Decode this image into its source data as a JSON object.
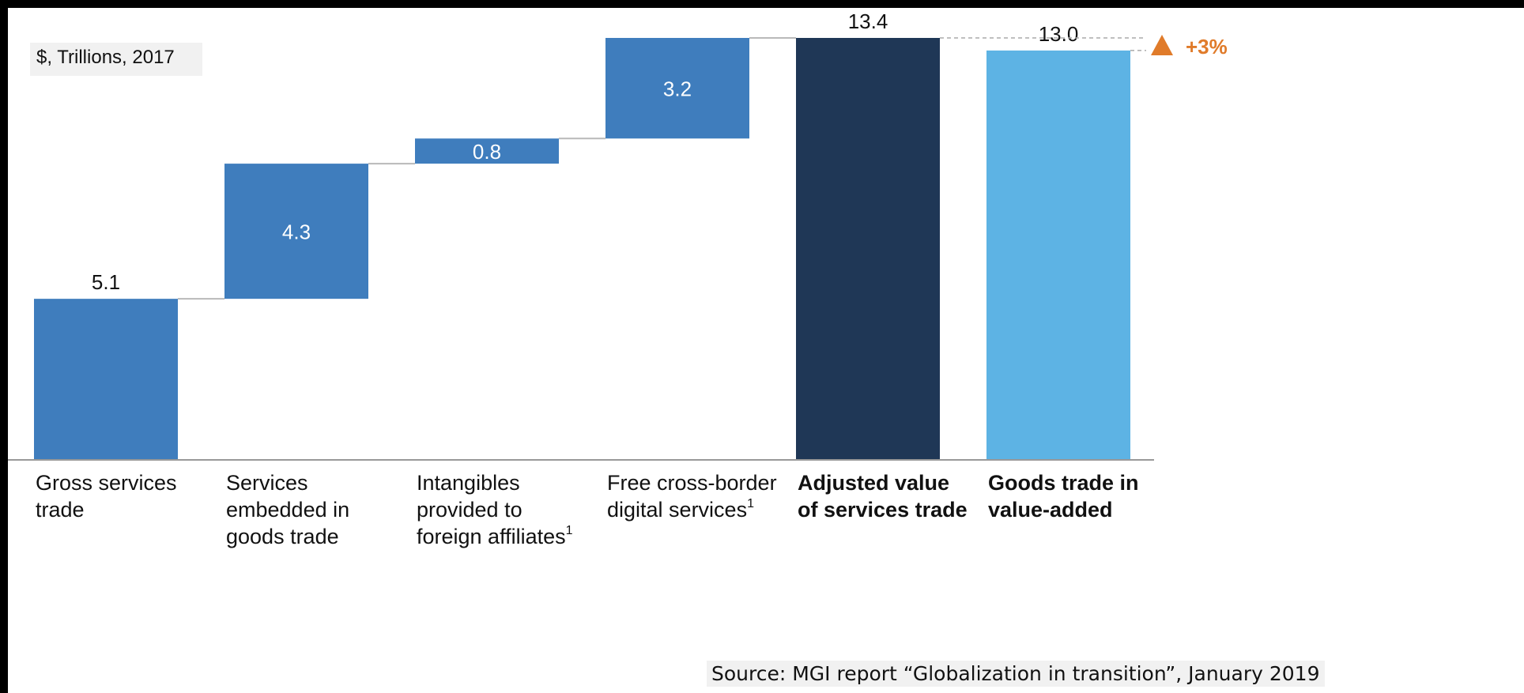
{
  "unit_note": "$, Trillions, 2017",
  "source_note": "Source: MGI report “Globalization in transition”, January 2019",
  "chart_data": {
    "type": "bar",
    "subtype": "waterfall",
    "categories": [
      [
        "Gross services",
        "trade"
      ],
      [
        "Services",
        "embedded in",
        "goods trade"
      ],
      [
        "Intangibles",
        "provided to",
        "foreign affiliates"
      ],
      [
        "Free cross-border",
        "digital services"
      ],
      [
        "Adjusted value",
        "of services trade"
      ],
      [
        "Goods trade in",
        "value-added"
      ]
    ],
    "footnote_marks": [
      "",
      "",
      "1",
      "1",
      "",
      ""
    ],
    "bold_categories": [
      false,
      false,
      false,
      false,
      true,
      true
    ],
    "bar_kinds": [
      "total",
      "increment",
      "increment",
      "increment",
      "total",
      "total"
    ],
    "values": [
      5.1,
      4.3,
      0.8,
      3.2,
      13.4,
      13.0
    ],
    "value_labels": [
      "5.1",
      "4.3",
      "0.8",
      "3.2",
      "13.4",
      "13.0"
    ],
    "colors": [
      "#3f7dbd",
      "#3f7dbd",
      "#3f7dbd",
      "#3f7dbd",
      "#1f3756",
      "#5db3e4"
    ],
    "connector_color": "#b9b9b9",
    "comparison": {
      "label": "+3%",
      "color": "#e07b2a",
      "marker": "up-triangle"
    },
    "ylim": [
      0,
      13.4
    ]
  }
}
